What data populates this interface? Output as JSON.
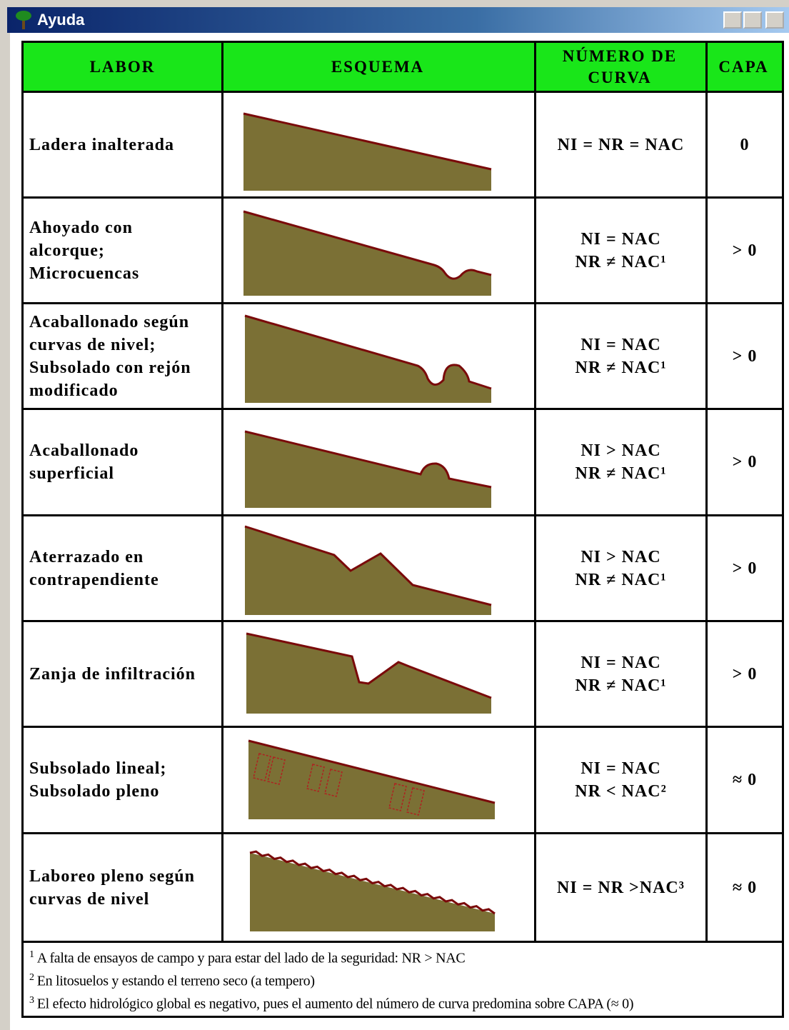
{
  "window": {
    "title": "Ayuda"
  },
  "table": {
    "headers": [
      [
        "LABOR"
      ],
      [
        "ESQUEMA"
      ],
      [
        "NÚMERO DE",
        "CURVA"
      ],
      [
        "CAPA"
      ]
    ],
    "rows": [
      {
        "labor": [
          "Ladera inalterada"
        ],
        "curva": [
          "NI = NR = NAC"
        ],
        "capa": "0"
      },
      {
        "labor": [
          "Ahoyado con",
          "alcorque;",
          "Microcuencas"
        ],
        "curva": [
          "NI = NAC",
          "NR ≠ NAC¹"
        ],
        "capa": "> 0"
      },
      {
        "labor": [
          "Acaballonado según",
          "curvas de nivel;",
          "Subsolado con rejón",
          "modificado"
        ],
        "curva": [
          "NI = NAC",
          "NR ≠ NAC¹"
        ],
        "capa": "> 0"
      },
      {
        "labor": [
          "Acaballonado",
          "superficial"
        ],
        "curva": [
          "NI > NAC",
          "NR ≠ NAC¹"
        ],
        "capa": "> 0"
      },
      {
        "labor": [
          "Aterrazado en",
          "contrapendiente"
        ],
        "curva": [
          "NI > NAC",
          "NR ≠ NAC¹"
        ],
        "capa": "> 0"
      },
      {
        "labor": [
          "Zanja de infiltración"
        ],
        "curva": [
          "NI = NAC",
          "NR ≠ NAC¹"
        ],
        "capa": "> 0"
      },
      {
        "labor": [
          "Subsolado lineal;",
          "Subsolado pleno"
        ],
        "curva": [
          "NI = NAC",
          "NR < NAC²"
        ],
        "capa": "≈ 0"
      },
      {
        "labor": [
          "Laboreo pleno según",
          "curvas de nivel"
        ],
        "curva": [
          "NI = NR >NAC³"
        ],
        "capa": "≈ 0"
      }
    ]
  },
  "footnotes": [
    {
      "mark": "1",
      "text": "A falta de ensayos de campo y para estar del lado de la seguridad:  NR > NAC"
    },
    {
      "mark": "2",
      "text": "En litosuelos y estando el terreno seco (a tempero)"
    },
    {
      "mark": "3",
      "text": "El efecto hidrológico global es negativo, pues el aumento del número de curva predomina sobre CAPA (≈ 0)"
    }
  ]
}
